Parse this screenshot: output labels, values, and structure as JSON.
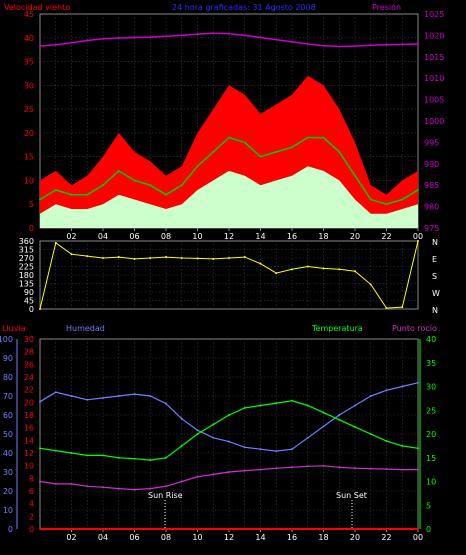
{
  "header": {
    "left_title": "Velocidad viento",
    "center_title": "24 hora graficadas: 31 Agosto 2008",
    "right_title": "Presión"
  },
  "colors": {
    "wind_gust": "#ff0000",
    "wind_avg": "#00cc00",
    "wind_low": "#ccffcc",
    "pressure": "#cc00cc",
    "direction": "#ffff00",
    "humidity": "#6f7fff",
    "temperature": "#00ff00",
    "dewpoint": "#cc33cc",
    "rain": "#ff0000",
    "title_blue": "#2b2bff"
  },
  "time_ticks": [
    "02",
    "04",
    "06",
    "08",
    "10",
    "12",
    "14",
    "16",
    "18",
    "20",
    "22",
    "00"
  ],
  "chart_data": [
    {
      "type": "line",
      "title": "24 hora graficadas: 31 Agosto 2008",
      "ylabel": "Velocidad viento",
      "y2label": "Presión",
      "ylim": [
        0,
        45
      ],
      "y2lim": [
        975,
        1025
      ],
      "yticks": [
        0,
        5,
        10,
        15,
        20,
        25,
        30,
        35,
        40,
        45
      ],
      "y2ticks": [
        975,
        980,
        985,
        990,
        995,
        1000,
        1005,
        1010,
        1015,
        1020,
        1025
      ],
      "x": [
        0,
        1,
        2,
        3,
        4,
        5,
        6,
        7,
        8,
        9,
        10,
        11,
        12,
        13,
        14,
        15,
        16,
        17,
        18,
        19,
        20,
        21,
        22,
        23,
        24
      ],
      "series": [
        {
          "name": "gust",
          "color": "#ff0000",
          "values": [
            10,
            12,
            9,
            11,
            15,
            20,
            16,
            14,
            11,
            13,
            20,
            25,
            30,
            28,
            24,
            26,
            28,
            32,
            30,
            25,
            18,
            9,
            7,
            10,
            12
          ]
        },
        {
          "name": "average",
          "color": "#00cc00",
          "values": [
            6,
            8,
            7,
            7,
            9,
            12,
            10,
            9,
            7,
            9,
            13,
            16,
            19,
            18,
            15,
            16,
            17,
            19,
            19,
            16,
            11,
            6,
            5,
            6,
            8
          ]
        },
        {
          "name": "low",
          "color": "#ccffcc",
          "values": [
            3,
            5,
            4,
            4,
            5,
            7,
            6,
            5,
            4,
            5,
            8,
            10,
            12,
            11,
            9,
            10,
            11,
            13,
            12,
            10,
            6,
            3,
            3,
            4,
            5
          ]
        },
        {
          "name": "pressure",
          "color": "#cc00cc",
          "axis": "right",
          "values": [
            1017.5,
            1017.8,
            1018.3,
            1018.8,
            1019.2,
            1019.4,
            1019.5,
            1019.6,
            1019.8,
            1020.0,
            1020.3,
            1020.5,
            1020.4,
            1020.0,
            1019.5,
            1019.0,
            1018.5,
            1018.0,
            1017.6,
            1017.4,
            1017.5,
            1017.7,
            1017.8,
            1017.9,
            1018.0
          ]
        }
      ]
    },
    {
      "type": "line",
      "ylim": [
        0,
        360
      ],
      "yticks": [
        0,
        45,
        90,
        135,
        180,
        225,
        270,
        315,
        360
      ],
      "compass_labels": [
        "N",
        "W",
        "S",
        "E",
        "N"
      ],
      "x": [
        0,
        1,
        2,
        3,
        4,
        5,
        6,
        7,
        8,
        9,
        10,
        11,
        12,
        13,
        14,
        15,
        16,
        17,
        18,
        19,
        20,
        21,
        22,
        23,
        24
      ],
      "series": [
        {
          "name": "direction",
          "color": "#ffff00",
          "values": [
            0,
            350,
            290,
            280,
            270,
            275,
            265,
            270,
            275,
            270,
            268,
            265,
            270,
            275,
            240,
            190,
            210,
            225,
            215,
            210,
            200,
            130,
            5,
            10,
            360
          ]
        }
      ]
    },
    {
      "type": "line",
      "labels": {
        "rain": "Lluvia",
        "humidity": "Humedad",
        "temperature": "Temperatura",
        "dewpoint": "Punto rocío"
      },
      "annotations": [
        "Sun Rise",
        "Sun Set"
      ],
      "axes": {
        "humidity_ticks": [
          0,
          10,
          20,
          30,
          40,
          50,
          60,
          70,
          80,
          90,
          100
        ],
        "rain_ticks": [
          0,
          2,
          4,
          6,
          8,
          10,
          12,
          14,
          16,
          18,
          20,
          22,
          24,
          26,
          28,
          30
        ],
        "temp_ticks": [
          0,
          5,
          10,
          15,
          20,
          25,
          30,
          35,
          40
        ]
      },
      "x": [
        0,
        1,
        2,
        3,
        4,
        5,
        6,
        7,
        8,
        9,
        10,
        11,
        12,
        13,
        14,
        15,
        16,
        17,
        18,
        19,
        20,
        21,
        22,
        23,
        24
      ],
      "series": [
        {
          "name": "Humedad",
          "color": "#6f7fff",
          "ylim": [
            0,
            100
          ],
          "values": [
            67,
            72,
            70,
            68,
            69,
            70,
            71,
            70,
            66,
            58,
            52,
            48,
            46,
            43,
            42,
            41,
            42,
            48,
            54,
            60,
            65,
            70,
            73,
            75,
            77
          ]
        },
        {
          "name": "Temperatura",
          "color": "#00ff00",
          "ylim": [
            0,
            40
          ],
          "values": [
            17,
            16.5,
            16,
            15.5,
            15.5,
            15,
            14.8,
            14.5,
            15,
            17.5,
            20,
            22,
            24,
            25.5,
            26,
            26.5,
            27,
            26,
            24.5,
            23,
            21.5,
            20,
            18.5,
            17.5,
            17
          ]
        },
        {
          "name": "Punto rocío",
          "color": "#cc33cc",
          "ylim": [
            0,
            40
          ],
          "values": [
            10,
            9.5,
            9.5,
            9,
            8.8,
            8.5,
            8.3,
            8.5,
            9,
            10,
            11,
            11.5,
            12,
            12.3,
            12.5,
            12.8,
            13,
            13.2,
            13.3,
            13,
            12.8,
            12.7,
            12.6,
            12.5,
            12.5
          ]
        },
        {
          "name": "Lluvia",
          "color": "#ff0000",
          "ylim": [
            0,
            30
          ],
          "values": [
            0,
            0,
            0,
            0,
            0,
            0,
            0,
            0,
            0,
            0,
            0,
            0,
            0,
            0,
            0,
            0,
            0,
            0,
            0,
            0,
            0,
            0,
            0,
            0,
            0
          ]
        }
      ]
    }
  ]
}
